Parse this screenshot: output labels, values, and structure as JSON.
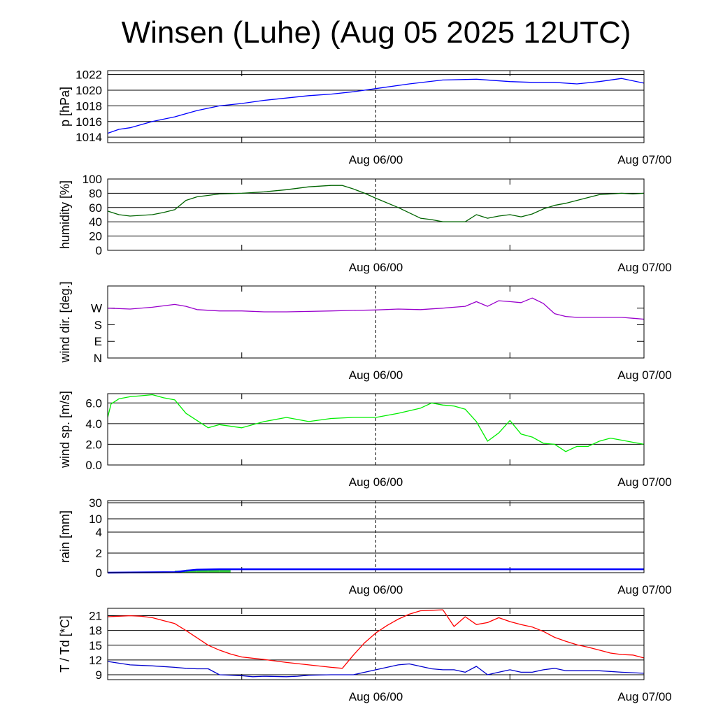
{
  "title": "Winsen (Luhe) (Aug 05 2025 12UTC)",
  "x_tick_labels": [
    "Aug 06/00",
    "Aug 07/00"
  ],
  "chart_data": [
    {
      "type": "line",
      "ylabel": "p [hPa]",
      "ylim": [
        1013.3,
        1022.5
      ],
      "yticks": [
        1014,
        1016,
        1018,
        1020,
        1022
      ],
      "ytick_labels": [
        "1014",
        "1016",
        "1018",
        "1020",
        "1022"
      ],
      "grid": true,
      "series": [
        {
          "color": "#0000ff",
          "x": [
            0,
            1,
            2,
            3,
            4,
            6,
            8,
            10,
            12,
            14,
            16,
            18,
            20,
            22,
            24,
            27,
            30,
            33,
            36,
            38,
            40,
            42,
            44,
            46,
            48
          ],
          "y": [
            1014.5,
            1015.0,
            1015.2,
            1015.6,
            1016.0,
            1016.6,
            1017.4,
            1018.0,
            1018.3,
            1018.7,
            1019.0,
            1019.3,
            1019.5,
            1019.8,
            1020.2,
            1020.8,
            1021.3,
            1021.4,
            1021.1,
            1021.0,
            1021.0,
            1020.8,
            1021.1,
            1021.5,
            1020.9
          ]
        }
      ]
    },
    {
      "type": "line",
      "ylabel": "humidity [%]",
      "ylim": [
        0,
        100
      ],
      "yticks": [
        0,
        20,
        40,
        60,
        80,
        100
      ],
      "ytick_labels": [
        "0",
        "20",
        "40",
        "60",
        "80",
        "100"
      ],
      "grid": true,
      "series": [
        {
          "color": "#006400",
          "x": [
            0,
            1,
            2,
            3,
            4,
            5,
            6,
            7,
            8,
            10,
            12,
            14,
            16,
            18,
            20,
            21,
            22,
            23,
            24,
            26,
            28,
            29,
            30,
            32,
            33,
            34,
            35,
            36,
            37,
            38,
            39,
            40,
            41,
            42,
            44,
            46,
            47,
            48
          ],
          "y": [
            55,
            50,
            48,
            49,
            50,
            53,
            57,
            70,
            75,
            79,
            80,
            82,
            85,
            89,
            91,
            91,
            86,
            80,
            73,
            60,
            45,
            43,
            40,
            40,
            50,
            45,
            48,
            50,
            47,
            51,
            58,
            63,
            66,
            70,
            78,
            80,
            79,
            80
          ]
        }
      ]
    },
    {
      "type": "line",
      "ylabel": "wind dir. [deg.]",
      "ylim": [
        0,
        390
      ],
      "yticks": [
        0,
        90,
        180,
        270
      ],
      "ytick_labels": [
        "N",
        "E",
        "S",
        "W"
      ],
      "grid": false,
      "series": [
        {
          "color": "#9900cc",
          "x": [
            0,
            2,
            4,
            6,
            7,
            8,
            10,
            12,
            14,
            16,
            18,
            20,
            22,
            24,
            26,
            28,
            30,
            31,
            32,
            33,
            34,
            35,
            36,
            37,
            38,
            39,
            40,
            41,
            42,
            43,
            44,
            46,
            47,
            48
          ],
          "y": [
            270,
            265,
            275,
            290,
            280,
            262,
            255,
            255,
            250,
            250,
            252,
            255,
            258,
            260,
            265,
            262,
            270,
            275,
            280,
            305,
            280,
            310,
            305,
            300,
            325,
            295,
            240,
            225,
            220,
            220,
            220,
            220,
            215,
            210
          ]
        }
      ]
    },
    {
      "type": "line",
      "ylabel": "wind sp. [m/s]",
      "ylim": [
        0,
        6.9
      ],
      "yticks": [
        0,
        2,
        4,
        6
      ],
      "ytick_labels": [
        "0.0",
        "2.0",
        "4.0",
        "6.0"
      ],
      "grid": true,
      "series": [
        {
          "color": "#00ee00",
          "x": [
            0,
            0.3,
            1,
            2,
            3,
            4,
            5,
            6,
            7,
            8,
            9,
            10,
            12,
            14,
            16,
            18,
            20,
            22,
            24,
            26,
            28,
            29,
            30,
            31,
            32,
            33,
            34,
            35,
            36,
            37,
            38,
            39,
            40,
            41,
            42,
            43,
            44,
            45,
            46,
            47,
            48
          ],
          "y": [
            4.6,
            5.9,
            6.4,
            6.6,
            6.7,
            6.8,
            6.5,
            6.3,
            5.0,
            4.3,
            3.6,
            3.9,
            3.6,
            4.2,
            4.6,
            4.2,
            4.5,
            4.6,
            4.6,
            5.0,
            5.5,
            6.0,
            5.8,
            5.7,
            5.4,
            4.2,
            2.3,
            3.1,
            4.3,
            3.0,
            2.7,
            2.1,
            2.0,
            1.3,
            1.8,
            1.8,
            2.3,
            2.6,
            2.4,
            2.2,
            2.0
          ]
        }
      ]
    },
    {
      "type": "area",
      "ylabel": "rain [mm]",
      "scale": "piecewise",
      "ylim": [
        0,
        30
      ],
      "yticks": [
        0,
        2,
        4,
        10,
        30
      ],
      "ytick_labels": [
        "0",
        "2",
        "4",
        "10",
        "30"
      ],
      "grid": true,
      "series": [
        {
          "color": "#33cc33",
          "kind": "hourly",
          "x": [
            6,
            7,
            8,
            9,
            10
          ],
          "y": [
            0.2,
            0.3,
            0.3,
            0.3,
            0.3
          ]
        },
        {
          "color": "#0000ff",
          "kind": "accumulated",
          "x": [
            0,
            6,
            7,
            8,
            10,
            48
          ],
          "y": [
            0,
            0.05,
            0.2,
            0.3,
            0.35,
            0.35
          ]
        }
      ]
    },
    {
      "type": "line",
      "ylabel": "T / Td [*C]",
      "ylim": [
        8,
        22.5
      ],
      "yticks": [
        9,
        12,
        15,
        18,
        21
      ],
      "ytick_labels": [
        "9",
        "12",
        "15",
        "18",
        "21"
      ],
      "grid": true,
      "series": [
        {
          "color": "#ff0000",
          "x": [
            0,
            1,
            2,
            3,
            4,
            5,
            6,
            7,
            8,
            9,
            10,
            11,
            12,
            14,
            16,
            18,
            20,
            21,
            22,
            23,
            24,
            25,
            26,
            27,
            28,
            29,
            30,
            31,
            32,
            33,
            34,
            35,
            36,
            37,
            38,
            39,
            40,
            41,
            42,
            43,
            44,
            45,
            46,
            47,
            48
          ],
          "y": [
            20.8,
            20.9,
            21.0,
            20.9,
            20.6,
            20.0,
            19.4,
            18.0,
            16.5,
            15.0,
            14.0,
            13.2,
            12.6,
            12.1,
            11.5,
            11.0,
            10.5,
            10.3,
            13.0,
            15.5,
            17.5,
            19.0,
            20.3,
            21.3,
            22.0,
            22.1,
            22.2,
            18.8,
            20.8,
            19.2,
            19.6,
            20.6,
            19.8,
            19.2,
            18.7,
            17.8,
            16.6,
            15.8,
            15.1,
            14.6,
            14.0,
            13.4,
            13.1,
            13.0,
            12.4
          ]
        },
        {
          "color": "#0000cc",
          "x": [
            0,
            2,
            4,
            6,
            7,
            8,
            9,
            10,
            12,
            13,
            14,
            16,
            17,
            18,
            20,
            22,
            24,
            26,
            27,
            28,
            29,
            30,
            31,
            32,
            33,
            34,
            35,
            36,
            37,
            38,
            39,
            40,
            41,
            42,
            44,
            46,
            48
          ],
          "y": [
            11.7,
            11.0,
            10.8,
            10.5,
            10.3,
            10.2,
            10.2,
            9.0,
            8.8,
            8.6,
            8.7,
            8.6,
            8.7,
            8.9,
            9.0,
            9.0,
            10.0,
            11.0,
            11.2,
            10.7,
            10.2,
            10.0,
            10.0,
            9.5,
            10.7,
            9.0,
            9.5,
            10.0,
            9.5,
            9.5,
            10.0,
            10.3,
            9.8,
            9.8,
            9.8,
            9.5,
            9.3
          ]
        }
      ]
    }
  ]
}
